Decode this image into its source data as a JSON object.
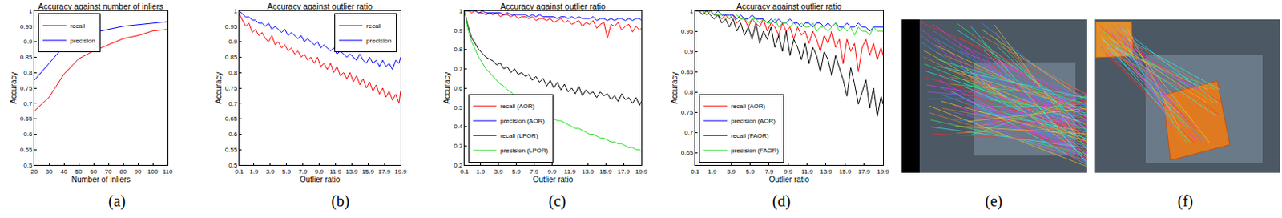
{
  "chart_data": [
    {
      "type": "line",
      "title": "Accuracy against number of inliers",
      "x_label": "Number of inliers",
      "y_label": "Accuracy",
      "x": [
        20,
        30,
        40,
        50,
        60,
        70,
        80,
        90,
        100,
        110
      ],
      "xlim": [
        20,
        110
      ],
      "xticks": [
        20,
        30,
        40,
        50,
        60,
        70,
        80,
        90,
        100,
        110
      ],
      "ylim": [
        0.5,
        1
      ],
      "yticks": [
        0.5,
        0.55,
        0.6,
        0.65,
        0.7,
        0.75,
        0.8,
        0.85,
        0.9,
        0.95,
        1
      ],
      "grid": false,
      "legend": "upper left",
      "series": [
        {
          "name": "recall",
          "color": "#ff0000",
          "values": [
            0.675,
            0.72,
            0.795,
            0.845,
            0.87,
            0.89,
            0.91,
            0.92,
            0.935,
            0.94
          ]
        },
        {
          "name": "precision",
          "color": "#0000ff",
          "values": [
            0.775,
            0.83,
            0.885,
            0.91,
            0.93,
            0.94,
            0.95,
            0.955,
            0.96,
            0.965
          ]
        }
      ]
    },
    {
      "type": "line",
      "title": "Accuracy against outlier ratio",
      "x_label": "Outlier ratio",
      "y_label": "Accuracy",
      "x": [
        0.1,
        0.5,
        0.9,
        1.3,
        1.7,
        2.1,
        2.5,
        2.9,
        3.3,
        3.7,
        4.1,
        4.5,
        4.9,
        5.3,
        5.7,
        6.1,
        6.5,
        6.9,
        7.3,
        7.7,
        8.1,
        8.5,
        8.9,
        9.3,
        9.7,
        10.1,
        10.5,
        10.9,
        11.3,
        11.7,
        12.1,
        12.5,
        12.9,
        13.3,
        13.7,
        14.1,
        14.5,
        14.9,
        15.3,
        15.7,
        16.1,
        16.5,
        16.9,
        17.3,
        17.7,
        18.1,
        18.5,
        18.9,
        19.3,
        19.7,
        19.9
      ],
      "xlim": [
        0.1,
        19.9
      ],
      "xticks": [
        0.1,
        1.9,
        3.9,
        5.9,
        7.9,
        9.9,
        11.9,
        13.9,
        15.9,
        17.9,
        19.9
      ],
      "ylim": [
        0.5,
        1
      ],
      "yticks": [
        0.5,
        0.55,
        0.6,
        0.65,
        0.7,
        0.75,
        0.8,
        0.85,
        0.9,
        0.95,
        1
      ],
      "grid": false,
      "legend": "upper right",
      "series": [
        {
          "name": "recall",
          "color": "#ff0000",
          "values": [
            0.99,
            0.97,
            0.95,
            0.96,
            0.93,
            0.94,
            0.92,
            0.93,
            0.91,
            0.9,
            0.92,
            0.89,
            0.9,
            0.88,
            0.89,
            0.87,
            0.88,
            0.86,
            0.87,
            0.85,
            0.86,
            0.84,
            0.85,
            0.83,
            0.85,
            0.82,
            0.83,
            0.81,
            0.83,
            0.8,
            0.82,
            0.79,
            0.8,
            0.78,
            0.8,
            0.77,
            0.79,
            0.76,
            0.78,
            0.75,
            0.77,
            0.74,
            0.76,
            0.73,
            0.75,
            0.72,
            0.74,
            0.71,
            0.73,
            0.7,
            0.74
          ]
        },
        {
          "name": "precision",
          "color": "#0000ff",
          "values": [
            1,
            0.99,
            0.98,
            0.98,
            0.97,
            0.97,
            0.96,
            0.96,
            0.95,
            0.96,
            0.94,
            0.95,
            0.94,
            0.93,
            0.94,
            0.92,
            0.93,
            0.92,
            0.91,
            0.92,
            0.9,
            0.91,
            0.9,
            0.89,
            0.9,
            0.88,
            0.89,
            0.88,
            0.87,
            0.88,
            0.86,
            0.87,
            0.86,
            0.85,
            0.86,
            0.85,
            0.84,
            0.86,
            0.84,
            0.83,
            0.85,
            0.83,
            0.84,
            0.82,
            0.84,
            0.82,
            0.83,
            0.81,
            0.84,
            0.83,
            0.85
          ]
        }
      ]
    },
    {
      "type": "line",
      "title": "Accuracy against outlier ratio",
      "x_label": "Outlier ratio",
      "y_label": "Accuracy",
      "x": [
        0.1,
        0.5,
        0.9,
        1.3,
        1.7,
        2.1,
        2.5,
        2.9,
        3.3,
        3.7,
        4.1,
        4.5,
        4.9,
        5.3,
        5.7,
        6.1,
        6.5,
        6.9,
        7.3,
        7.7,
        8.1,
        8.5,
        8.9,
        9.3,
        9.7,
        10.1,
        10.5,
        10.9,
        11.3,
        11.7,
        12.1,
        12.5,
        12.9,
        13.3,
        13.7,
        14.1,
        14.5,
        14.9,
        15.3,
        15.7,
        16.1,
        16.5,
        16.9,
        17.3,
        17.7,
        18.1,
        18.5,
        18.9,
        19.3,
        19.7,
        19.9
      ],
      "xlim": [
        0.1,
        19.9
      ],
      "xticks": [
        0.1,
        1.9,
        3.9,
        5.9,
        7.9,
        9.9,
        11.9,
        13.9,
        15.9,
        17.9,
        19.9
      ],
      "ylim": [
        0.2,
        1
      ],
      "yticks": [
        0.2,
        0.3,
        0.4,
        0.5,
        0.6,
        0.7,
        0.8,
        0.9,
        1
      ],
      "grid": false,
      "legend": "lower left",
      "series": [
        {
          "name": "recall (AOR)",
          "color": "#ff0000",
          "values": [
            1,
            1,
            0.99,
            1,
            0.99,
            0.99,
            0.98,
            0.99,
            0.98,
            0.99,
            0.97,
            0.98,
            0.98,
            0.97,
            0.98,
            0.96,
            0.97,
            0.97,
            0.96,
            0.97,
            0.95,
            0.96,
            0.96,
            0.95,
            0.96,
            0.94,
            0.95,
            0.96,
            0.94,
            0.95,
            0.93,
            0.94,
            0.95,
            0.92,
            0.94,
            0.93,
            0.95,
            0.91,
            0.93,
            0.94,
            0.86,
            0.93,
            0.92,
            0.94,
            0.9,
            0.92,
            0.93,
            0.89,
            0.92,
            0.9,
            0.91
          ]
        },
        {
          "name": "precision (AOR)",
          "color": "#0000ff",
          "values": [
            1,
            1,
            1,
            1,
            0.99,
            1,
            0.99,
            0.99,
            0.99,
            0.99,
            0.99,
            0.98,
            0.99,
            0.98,
            0.98,
            0.98,
            0.98,
            0.98,
            0.97,
            0.98,
            0.97,
            0.98,
            0.97,
            0.97,
            0.97,
            0.97,
            0.96,
            0.97,
            0.97,
            0.96,
            0.97,
            0.96,
            0.97,
            0.96,
            0.96,
            0.96,
            0.97,
            0.95,
            0.96,
            0.96,
            0.95,
            0.96,
            0.95,
            0.96,
            0.96,
            0.95,
            0.96,
            0.95,
            0.96,
            0.96,
            0.95
          ]
        },
        {
          "name": "recall (LPOR)",
          "color": "#000000",
          "values": [
            1,
            0.92,
            0.86,
            0.83,
            0.8,
            0.78,
            0.76,
            0.75,
            0.74,
            0.72,
            0.73,
            0.7,
            0.71,
            0.68,
            0.7,
            0.67,
            0.68,
            0.66,
            0.67,
            0.64,
            0.66,
            0.63,
            0.65,
            0.61,
            0.64,
            0.6,
            0.63,
            0.59,
            0.62,
            0.58,
            0.6,
            0.57,
            0.61,
            0.56,
            0.59,
            0.57,
            0.58,
            0.55,
            0.58,
            0.56,
            0.57,
            0.54,
            0.56,
            0.53,
            0.57,
            0.54,
            0.55,
            0.52,
            0.55,
            0.51,
            0.53
          ]
        },
        {
          "name": "precision (LPOR)",
          "color": "#22dd22",
          "values": [
            1,
            0.9,
            0.84,
            0.8,
            0.76,
            0.73,
            0.7,
            0.68,
            0.66,
            0.64,
            0.62,
            0.61,
            0.59,
            0.58,
            0.56,
            0.55,
            0.54,
            0.52,
            0.51,
            0.5,
            0.49,
            0.48,
            0.47,
            0.46,
            0.45,
            0.44,
            0.43,
            0.43,
            0.42,
            0.41,
            0.4,
            0.39,
            0.39,
            0.38,
            0.37,
            0.36,
            0.36,
            0.35,
            0.34,
            0.34,
            0.33,
            0.32,
            0.32,
            0.31,
            0.31,
            0.3,
            0.29,
            0.29,
            0.28,
            0.28,
            0.27
          ]
        }
      ]
    },
    {
      "type": "line",
      "title": "Accuracy against outlier ratio",
      "x_label": "Outlier ratio",
      "y_label": "Accuracy",
      "x": [
        0.1,
        0.5,
        0.9,
        1.3,
        1.7,
        2.1,
        2.5,
        2.9,
        3.3,
        3.7,
        4.1,
        4.5,
        4.9,
        5.3,
        5.7,
        6.1,
        6.5,
        6.9,
        7.3,
        7.7,
        8.1,
        8.5,
        8.9,
        9.3,
        9.7,
        10.1,
        10.5,
        10.9,
        11.3,
        11.7,
        12.1,
        12.5,
        12.9,
        13.3,
        13.7,
        14.1,
        14.5,
        14.9,
        15.3,
        15.7,
        16.1,
        16.5,
        16.9,
        17.3,
        17.7,
        18.1,
        18.5,
        18.9,
        19.3,
        19.7,
        19.9
      ],
      "xlim": [
        0.1,
        19.9
      ],
      "xticks": [
        0.1,
        1.9,
        3.9,
        5.9,
        7.9,
        9.9,
        11.9,
        13.9,
        15.9,
        17.9,
        19.9
      ],
      "ylim": [
        0.62,
        1
      ],
      "yticks": [
        0.65,
        0.7,
        0.75,
        0.8,
        0.85,
        0.9,
        0.95,
        1
      ],
      "grid": false,
      "legend": "lower left",
      "series": [
        {
          "name": "recall (AOR)",
          "color": "#ff0000",
          "values": [
            1,
            1,
            1,
            0.99,
            1,
            0.99,
            0.99,
            0.98,
            0.99,
            0.98,
            0.99,
            0.97,
            0.98,
            0.98,
            0.96,
            0.98,
            0.97,
            0.96,
            0.98,
            0.95,
            0.97,
            0.96,
            0.94,
            0.97,
            0.95,
            0.96,
            0.93,
            0.96,
            0.94,
            0.95,
            0.92,
            0.95,
            0.93,
            0.9,
            0.94,
            0.92,
            0.95,
            0.91,
            0.93,
            0.87,
            0.93,
            0.9,
            0.92,
            0.85,
            0.91,
            0.93,
            0.89,
            0.92,
            0.88,
            0.91,
            0.89
          ]
        },
        {
          "name": "precision (AOR)",
          "color": "#0000ff",
          "values": [
            1,
            1,
            1,
            1,
            1,
            0.99,
            1,
            0.99,
            0.99,
            0.99,
            0.99,
            0.98,
            0.99,
            0.98,
            0.98,
            0.99,
            0.98,
            0.98,
            0.98,
            0.97,
            0.98,
            0.97,
            0.98,
            0.97,
            0.97,
            0.98,
            0.97,
            0.97,
            0.96,
            0.97,
            0.97,
            0.96,
            0.97,
            0.97,
            0.96,
            0.97,
            0.96,
            0.97,
            0.96,
            0.96,
            0.97,
            0.96,
            0.96,
            0.97,
            0.96,
            0.96,
            0.95,
            0.96,
            0.96,
            0.96,
            0.96
          ]
        },
        {
          "name": "recall (FAOR)",
          "color": "#000000",
          "values": [
            1,
            1,
            0.99,
            1,
            0.99,
            0.98,
            0.99,
            0.97,
            0.98,
            0.96,
            0.98,
            0.95,
            0.97,
            0.94,
            0.96,
            0.93,
            0.97,
            0.92,
            0.95,
            0.93,
            0.96,
            0.91,
            0.94,
            0.9,
            0.95,
            0.89,
            0.93,
            0.91,
            0.88,
            0.92,
            0.87,
            0.91,
            0.89,
            0.85,
            0.9,
            0.88,
            0.84,
            0.89,
            0.86,
            0.83,
            0.79,
            0.86,
            0.82,
            0.77,
            0.8,
            0.83,
            0.76,
            0.81,
            0.74,
            0.79,
            0.77
          ]
        },
        {
          "name": "precision (FAOR)",
          "color": "#22dd22",
          "values": [
            1,
            1,
            1,
            0.99,
            1,
            0.99,
            0.99,
            0.99,
            0.98,
            0.99,
            0.98,
            0.99,
            0.98,
            0.98,
            0.97,
            0.98,
            0.98,
            0.97,
            0.98,
            0.97,
            0.97,
            0.98,
            0.96,
            0.97,
            0.97,
            0.96,
            0.97,
            0.96,
            0.97,
            0.96,
            0.96,
            0.97,
            0.95,
            0.96,
            0.96,
            0.95,
            0.96,
            0.97,
            0.95,
            0.96,
            0.95,
            0.96,
            0.94,
            0.96,
            0.95,
            0.95,
            0.94,
            0.96,
            0.95,
            0.95,
            0.95
          ]
        }
      ]
    }
  ],
  "panel_labels": [
    "(a)",
    "(b)",
    "(c)",
    "(d)",
    "(e)",
    "(f)"
  ]
}
